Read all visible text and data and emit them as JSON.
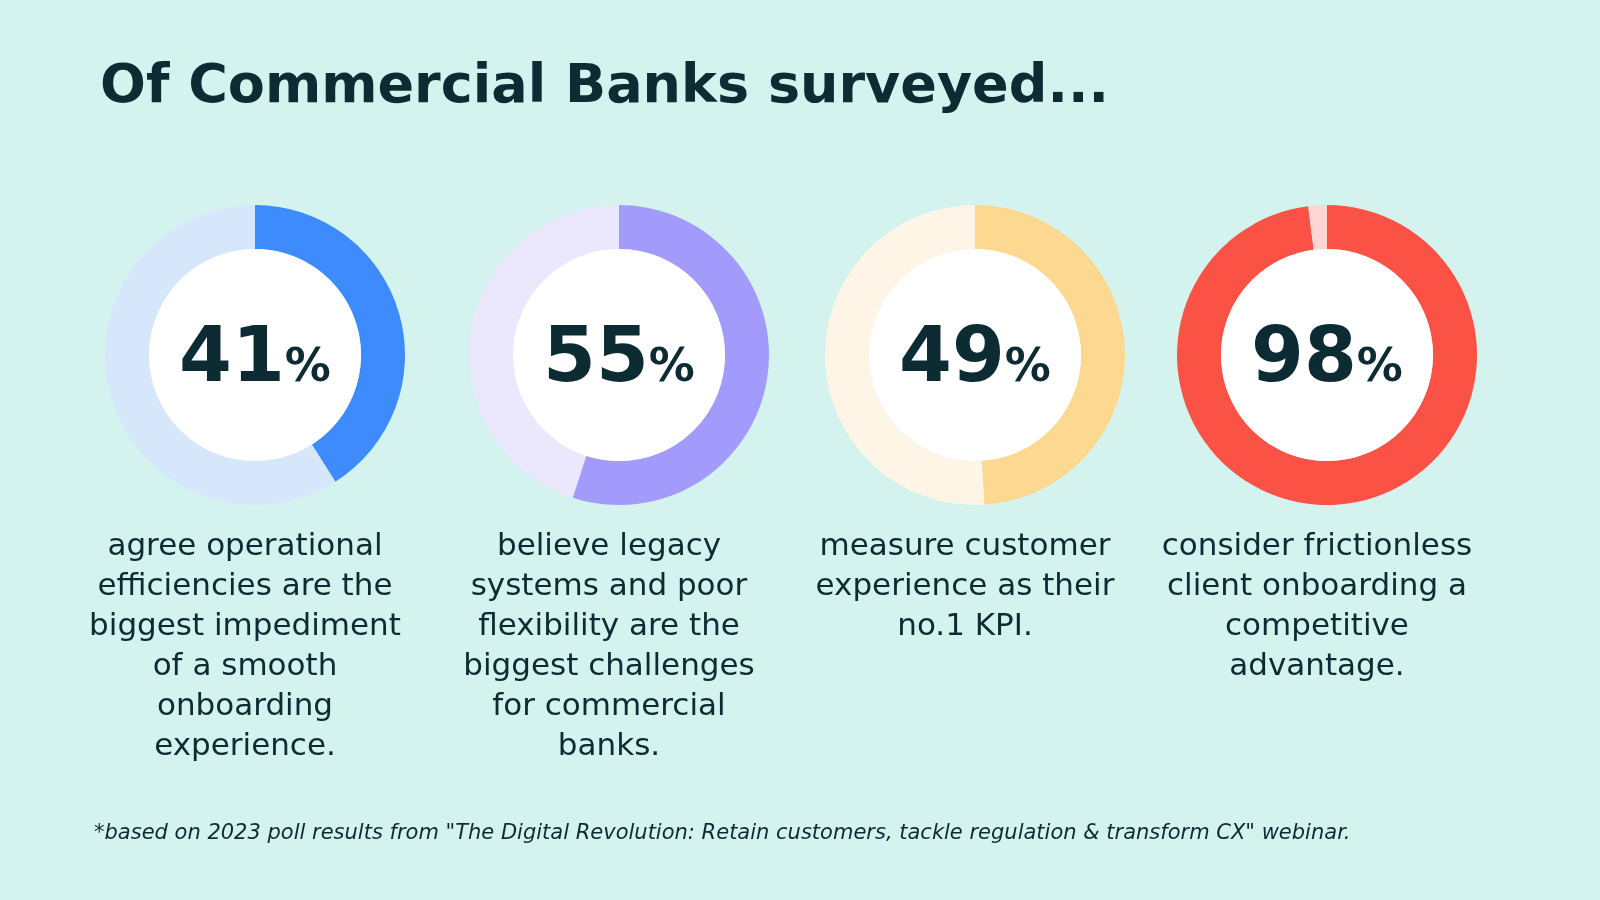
{
  "chart_data": [
    {
      "type": "other",
      "title": "Of Commercial Banks surveyed...",
      "annotations": [
        "*based on 2023 poll results from \"The Digital Revolution: Retain customers, tackle regulation & transform CX\" webinar."
      ]
    },
    {
      "type": "donut",
      "categories": [
        null,
        null
      ],
      "values": [
        41,
        59
      ],
      "colors": [
        "#3d8bfd",
        "#d6e6fb"
      ],
      "value_labels": [
        "41%",
        null
      ],
      "annotations": [
        "agree operational efficiencies are the biggest impediment of a smooth onboarding experience."
      ]
    },
    {
      "type": "donut",
      "categories": [
        null,
        null
      ],
      "values": [
        55,
        45
      ],
      "colors": [
        "#a39bfb",
        "#ebe8fd"
      ],
      "value_labels": [
        "55%",
        null
      ],
      "annotations": [
        "believe legacy systems and poor flexibility are the biggest challenges for commercial banks."
      ]
    },
    {
      "type": "donut",
      "categories": [
        null,
        null
      ],
      "values": [
        49,
        51
      ],
      "colors": [
        "#fdd891",
        "#fef5e6"
      ],
      "value_labels": [
        "49%",
        null
      ],
      "annotations": [
        "measure customer experience as their no.1 KPI."
      ]
    },
    {
      "type": "donut",
      "categories": [
        null,
        null
      ],
      "values": [
        98,
        2
      ],
      "colors": [
        "#fb5246",
        "#fdd5d3"
      ],
      "value_labels": [
        "98%",
        null
      ],
      "annotations": [
        "consider frictionless client onboarding a competitive advantage."
      ]
    }
  ]
}
